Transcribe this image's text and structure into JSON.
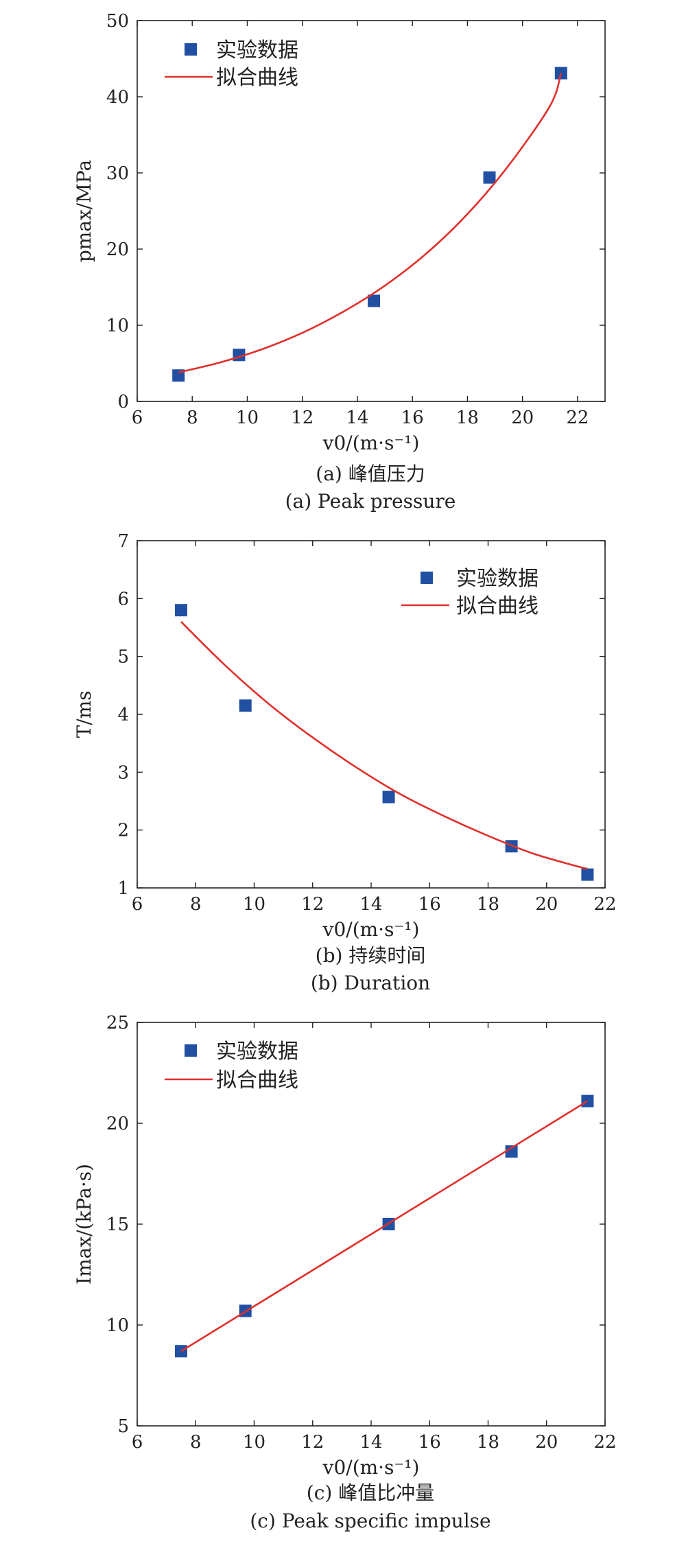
{
  "chart_data": [
    {
      "type": "scatter",
      "title": "",
      "caption_cn": "(a) 峰值压力",
      "caption_en": "(a) Peak pressure",
      "xlabel": "v0/(m·s⁻¹)",
      "ylabel": "pmax/MPa",
      "xlim": [
        6,
        23
      ],
      "ylim": [
        0,
        50
      ],
      "xticks": [
        6,
        8,
        10,
        12,
        14,
        16,
        18,
        20,
        22
      ],
      "yticks": [
        0,
        10,
        20,
        30,
        40,
        50
      ],
      "legend_position": "top-left",
      "series": [
        {
          "name": "实验数据",
          "kind": "scatter",
          "color": "#2150a3",
          "x": [
            7.5,
            9.7,
            14.6,
            18.8,
            21.4
          ],
          "y": [
            3.4,
            6.1,
            13.2,
            29.4,
            43.1
          ]
        },
        {
          "name": "拟合曲线",
          "kind": "line",
          "color": "#e0302b",
          "x": [
            7.5,
            9,
            10.5,
            12,
            13.5,
            15,
            16.5,
            18,
            19.5,
            21,
            21.4
          ],
          "y": [
            3.8,
            5.1,
            6.8,
            9.0,
            11.8,
            15.2,
            19.4,
            24.6,
            31.0,
            38.8,
            43.1
          ]
        }
      ]
    },
    {
      "type": "scatter",
      "title": "",
      "caption_cn": "(b) 持续时间",
      "caption_en": "(b) Duration",
      "xlabel": "v0/(m·s⁻¹)",
      "ylabel": "T/ms",
      "xlim": [
        6,
        22
      ],
      "ylim": [
        1,
        7
      ],
      "xticks": [
        6,
        8,
        10,
        12,
        14,
        16,
        18,
        20,
        22
      ],
      "yticks": [
        1,
        2,
        3,
        4,
        5,
        6,
        7
      ],
      "legend_position": "top-right",
      "series": [
        {
          "name": "实验数据",
          "kind": "scatter",
          "color": "#2150a3",
          "x": [
            7.5,
            9.7,
            14.6,
            18.8,
            21.4
          ],
          "y": [
            5.8,
            4.15,
            2.57,
            1.72,
            1.23
          ]
        },
        {
          "name": "拟合曲线",
          "kind": "line",
          "color": "#e0302b",
          "x": [
            7.5,
            9,
            10.5,
            12,
            13.5,
            15,
            16.5,
            18,
            19.5,
            21,
            21.4
          ],
          "y": [
            5.6,
            4.85,
            4.18,
            3.6,
            3.08,
            2.62,
            2.24,
            1.9,
            1.6,
            1.38,
            1.33
          ]
        }
      ]
    },
    {
      "type": "scatter",
      "title": "",
      "caption_cn": "(c) 峰值比冲量",
      "caption_en": "(c) Peak specific impulse",
      "xlabel": "v0/(m·s⁻¹)",
      "ylabel": "Imax/(kPa·s)",
      "xlim": [
        6,
        22
      ],
      "ylim": [
        5,
        25
      ],
      "xticks": [
        6,
        8,
        10,
        12,
        14,
        16,
        18,
        20,
        22
      ],
      "yticks": [
        5,
        10,
        15,
        20,
        25
      ],
      "legend_position": "top-left",
      "series": [
        {
          "name": "实验数据",
          "kind": "scatter",
          "color": "#2150a3",
          "x": [
            7.5,
            9.7,
            14.6,
            18.8,
            21.4
          ],
          "y": [
            8.7,
            10.7,
            15.0,
            18.6,
            21.1
          ]
        },
        {
          "name": "拟合曲线",
          "kind": "line",
          "color": "#e0302b",
          "x": [
            7.5,
            21.4
          ],
          "y": [
            8.7,
            21.1
          ]
        }
      ]
    }
  ]
}
